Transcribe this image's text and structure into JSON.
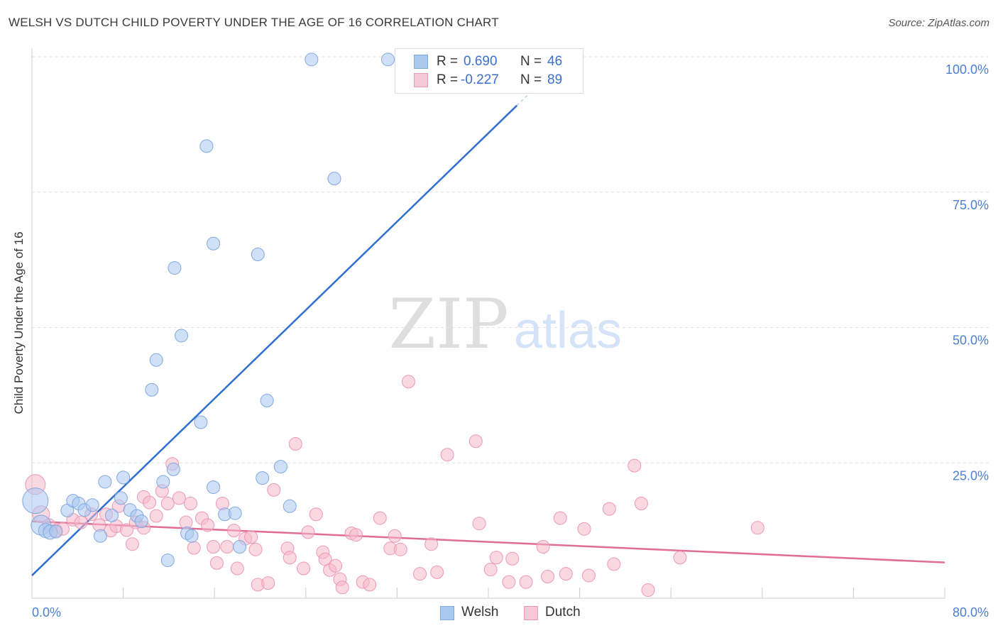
{
  "header": {
    "title": "WELSH VS DUTCH CHILD POVERTY UNDER THE AGE OF 16 CORRELATION CHART",
    "source": "Source: ZipAtlas.com"
  },
  "legend_top": {
    "rows": [
      {
        "r_label": "R =",
        "r_value": "0.690",
        "n_label": "N =",
        "n_value": "46"
      },
      {
        "r_label": "R =",
        "r_value": "-0.227",
        "n_label": "N =",
        "n_value": "89"
      }
    ]
  },
  "legend_bottom": {
    "welsh": "Welsh",
    "dutch": "Dutch"
  },
  "watermark": {
    "zip": "ZIP",
    "atlas": "atlas"
  },
  "chart_data": {
    "type": "scatter",
    "title": "WELSH VS DUTCH CHILD POVERTY UNDER THE AGE OF 16 CORRELATION CHART",
    "xlabel": "",
    "ylabel": "Child Poverty Under the Age of 16",
    "xlim": [
      0,
      80
    ],
    "ylim": [
      0,
      100
    ],
    "x_tick_labels": [
      "0.0%",
      "80.0%"
    ],
    "y_ticks": [
      25,
      50,
      75,
      100
    ],
    "y_tick_labels": [
      "25.0%",
      "50.0%",
      "75.0%",
      "100.0%"
    ],
    "grid": true,
    "colors": {
      "welsh_fill": "#aac8f0",
      "welsh_stroke": "#7fa8e0",
      "welsh_line": "#2f6fd0",
      "dutch_fill": "#f5b8cb",
      "dutch_stroke": "#ec98b4",
      "dutch_line": "#e06c97",
      "axis_text": "#4a7fd4"
    },
    "series": [
      {
        "name": "Welsh",
        "trend": {
          "x0": 0,
          "y0": 4.2,
          "x1": 42.5,
          "y1": 91.0,
          "dash_to_x": 46.5
        },
        "points": [
          [
            0.3,
            18.0,
            18
          ],
          [
            0.8,
            13.5,
            14
          ],
          [
            1.2,
            12.5,
            10
          ],
          [
            1.6,
            12.2,
            10
          ],
          [
            2.1,
            12.3,
            9
          ],
          [
            3.1,
            16.2,
            9
          ],
          [
            3.6,
            18.0,
            9
          ],
          [
            4.1,
            17.5,
            9
          ],
          [
            4.6,
            16.3,
            9
          ],
          [
            5.3,
            17.2,
            9
          ],
          [
            6.0,
            11.5,
            9
          ],
          [
            6.4,
            21.5,
            9
          ],
          [
            7.0,
            15.3,
            9
          ],
          [
            7.8,
            18.5,
            9
          ],
          [
            8.0,
            22.3,
            9
          ],
          [
            8.6,
            16.3,
            9
          ],
          [
            9.2,
            15.2,
            9
          ],
          [
            9.6,
            14.2,
            9
          ],
          [
            10.5,
            38.5,
            9
          ],
          [
            10.9,
            44.0,
            9
          ],
          [
            11.5,
            21.5,
            9
          ],
          [
            11.9,
            7.0,
            9
          ],
          [
            12.4,
            23.8,
            9
          ],
          [
            12.5,
            61.0,
            9
          ],
          [
            13.1,
            48.5,
            9
          ],
          [
            13.6,
            12.0,
            9
          ],
          [
            14.0,
            11.5,
            9
          ],
          [
            14.8,
            32.5,
            9
          ],
          [
            15.3,
            83.5,
            9
          ],
          [
            15.9,
            65.5,
            9
          ],
          [
            15.9,
            20.5,
            9
          ],
          [
            16.9,
            15.5,
            9
          ],
          [
            17.8,
            15.7,
            9
          ],
          [
            18.2,
            9.5,
            9
          ],
          [
            19.8,
            63.5,
            9
          ],
          [
            20.2,
            22.2,
            9
          ],
          [
            20.6,
            36.5,
            9
          ],
          [
            21.8,
            24.3,
            9
          ],
          [
            22.6,
            17.0,
            9
          ],
          [
            24.5,
            99.5,
            9
          ],
          [
            26.5,
            77.5,
            9
          ],
          [
            31.2,
            99.5,
            9
          ],
          [
            33.4,
            99.5,
            9
          ]
        ]
      },
      {
        "name": "Dutch",
        "trend": {
          "x0": 0,
          "y0": 14.2,
          "x1": 80,
          "y1": 6.6
        },
        "points": [
          [
            0.3,
            21.0,
            14
          ],
          [
            0.8,
            15.5,
            12
          ],
          [
            1.5,
            13.5,
            9
          ],
          [
            2.1,
            12.5,
            9
          ],
          [
            2.7,
            12.8,
            9
          ],
          [
            3.6,
            14.5,
            9
          ],
          [
            4.3,
            14.0,
            9
          ],
          [
            5.2,
            15.5,
            9
          ],
          [
            5.9,
            13.5,
            9
          ],
          [
            6.5,
            15.5,
            9
          ],
          [
            6.9,
            12.5,
            9
          ],
          [
            7.4,
            13.3,
            9
          ],
          [
            7.6,
            17.0,
            9
          ],
          [
            8.3,
            12.6,
            9
          ],
          [
            8.8,
            10.0,
            9
          ],
          [
            9.1,
            14.0,
            9
          ],
          [
            9.8,
            13.0,
            9
          ],
          [
            9.8,
            18.7,
            9
          ],
          [
            10.3,
            17.7,
            9
          ],
          [
            10.9,
            15.2,
            9
          ],
          [
            11.4,
            19.8,
            9
          ],
          [
            11.9,
            17.5,
            9
          ],
          [
            12.3,
            24.8,
            9
          ],
          [
            12.9,
            18.5,
            9
          ],
          [
            13.5,
            14.0,
            9
          ],
          [
            13.9,
            17.5,
            9
          ],
          [
            14.2,
            9.3,
            9
          ],
          [
            14.9,
            14.8,
            9
          ],
          [
            15.4,
            13.5,
            9
          ],
          [
            15.9,
            9.5,
            9
          ],
          [
            16.2,
            6.5,
            9
          ],
          [
            16.7,
            17.5,
            9
          ],
          [
            17.1,
            9.5,
            9
          ],
          [
            17.7,
            12.5,
            9
          ],
          [
            18.0,
            5.5,
            9
          ],
          [
            18.7,
            11.0,
            9
          ],
          [
            19.2,
            11.3,
            9
          ],
          [
            19.6,
            9.0,
            9
          ],
          [
            19.8,
            2.5,
            9
          ],
          [
            20.7,
            2.8,
            9
          ],
          [
            21.2,
            20.0,
            9
          ],
          [
            22.4,
            9.2,
            9
          ],
          [
            22.6,
            7.5,
            9
          ],
          [
            23.1,
            28.5,
            9
          ],
          [
            23.8,
            5.5,
            9
          ],
          [
            24.2,
            12.2,
            9
          ],
          [
            24.9,
            15.5,
            9
          ],
          [
            25.5,
            8.5,
            9
          ],
          [
            25.7,
            7.2,
            9
          ],
          [
            26.1,
            5.2,
            9
          ],
          [
            26.6,
            6.0,
            9
          ],
          [
            27.0,
            3.5,
            9
          ],
          [
            27.2,
            2.0,
            9
          ],
          [
            28.0,
            12.0,
            9
          ],
          [
            28.4,
            11.7,
            9
          ],
          [
            29.0,
            3.0,
            9
          ],
          [
            29.6,
            2.5,
            9
          ],
          [
            30.5,
            14.8,
            9
          ],
          [
            31.4,
            9.2,
            9
          ],
          [
            31.8,
            11.5,
            9
          ],
          [
            32.3,
            9.0,
            9
          ],
          [
            33.0,
            40.0,
            9
          ],
          [
            34.0,
            4.5,
            9
          ],
          [
            35.0,
            10.0,
            9
          ],
          [
            35.5,
            4.8,
            9
          ],
          [
            36.4,
            26.5,
            9
          ],
          [
            38.9,
            29.0,
            9
          ],
          [
            39.2,
            13.8,
            9
          ],
          [
            40.2,
            5.3,
            9
          ],
          [
            40.7,
            7.5,
            9
          ],
          [
            41.8,
            3.0,
            9
          ],
          [
            42.1,
            7.3,
            9
          ],
          [
            43.3,
            3.0,
            9
          ],
          [
            44.8,
            9.5,
            9
          ],
          [
            45.2,
            4.0,
            9
          ],
          [
            46.3,
            14.8,
            9
          ],
          [
            46.8,
            4.5,
            9
          ],
          [
            48.4,
            12.8,
            9
          ],
          [
            48.8,
            4.2,
            9
          ],
          [
            50.6,
            16.5,
            9
          ],
          [
            51.0,
            6.3,
            9
          ],
          [
            52.8,
            24.5,
            9
          ],
          [
            53.4,
            17.5,
            9
          ],
          [
            54.0,
            1.5,
            9
          ],
          [
            56.8,
            7.5,
            9
          ],
          [
            63.6,
            13.0,
            9
          ]
        ]
      }
    ]
  }
}
